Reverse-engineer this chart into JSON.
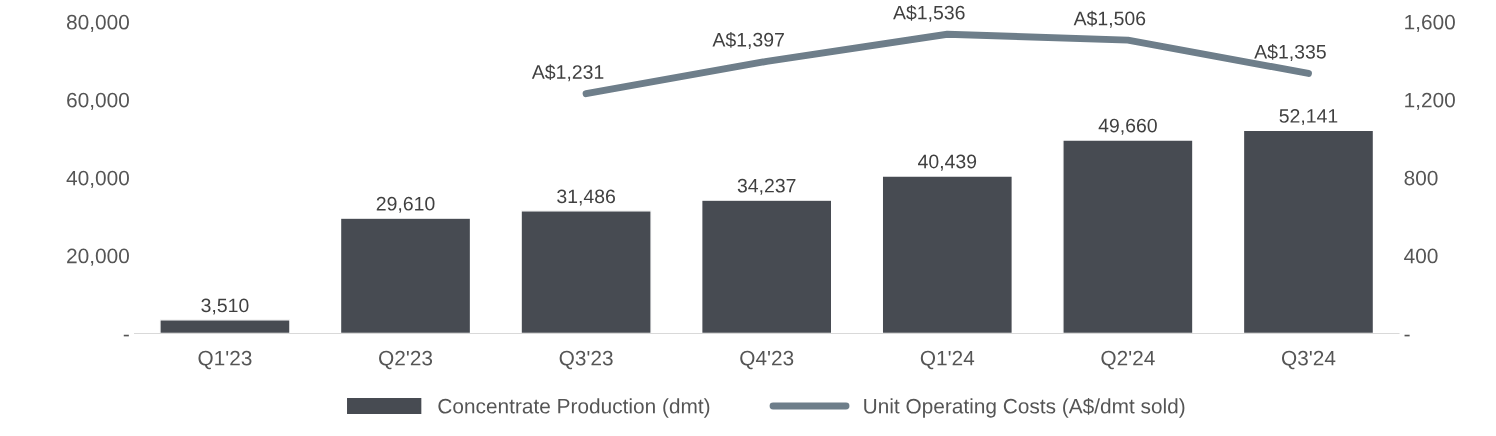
{
  "chart_data": {
    "type": "bar",
    "categories": [
      "Q1'23",
      "Q2'23",
      "Q3'23",
      "Q4'23",
      "Q1'24",
      "Q2'24",
      "Q3'24"
    ],
    "series": [
      {
        "name": "Concentrate Production (dmt)",
        "color": "#474b52",
        "values": [
          3510,
          29610,
          31486,
          34237,
          40439,
          49660,
          52141
        ],
        "value_labels": [
          "3,510",
          "29,610",
          "31,486",
          "34,237",
          "40,439",
          "49,660",
          "52,141"
        ]
      },
      {
        "name": "Unit Operating Costs (A$/dmt sold)",
        "type": "line",
        "axis": "y2",
        "color": "#6e7e8a",
        "values": [
          null,
          null,
          1231,
          1397,
          1536,
          1506,
          1335
        ],
        "value_labels": [
          null,
          null,
          "A$1,231",
          "A$1,397",
          "A$1,536",
          "A$1,506",
          "A$1,335"
        ]
      }
    ],
    "ylim": [
      0,
      80000
    ],
    "yticks": [
      {
        "value": 0,
        "label": "-"
      },
      {
        "value": 20000,
        "label": "20,000"
      },
      {
        "value": 40000,
        "label": "40,000"
      },
      {
        "value": 60000,
        "label": "60,000"
      },
      {
        "value": 80000,
        "label": "80,000"
      }
    ],
    "y2lim": [
      0,
      1600
    ],
    "y2ticks": [
      {
        "value": 0,
        "label": "-"
      },
      {
        "value": 400,
        "label": "400"
      },
      {
        "value": 800,
        "label": "800"
      },
      {
        "value": 1200,
        "label": "1,200"
      },
      {
        "value": 1600,
        "label": "1,600"
      }
    ],
    "legend": "bottom",
    "grid": false,
    "marker": "none",
    "line_style": "solid"
  }
}
